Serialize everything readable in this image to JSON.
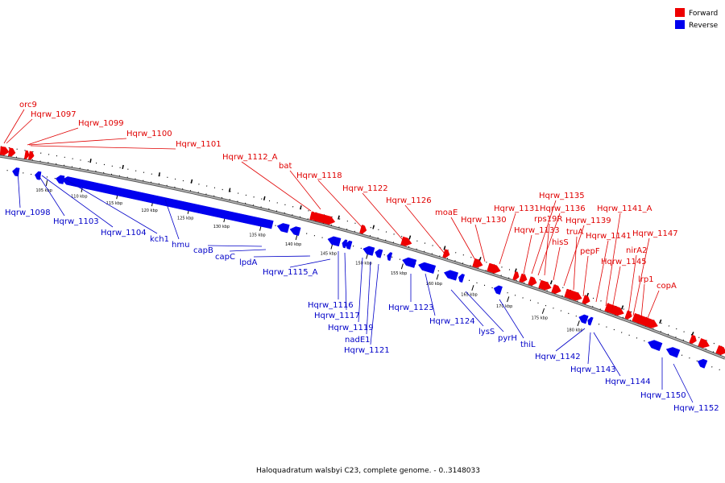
{
  "caption": "Haloquadratum walsbyi C23, complete genome. - 0..3148033",
  "legend": [
    {
      "label": "Forward",
      "color": "#ee0000"
    },
    {
      "label": "Reverse",
      "color": "#0000ee"
    }
  ],
  "colors": {
    "forward": "#ee0000",
    "reverse": "#0000ee",
    "forward_label": "#e00000",
    "reverse_label": "#0000c8",
    "backbone": "#999999"
  },
  "ticks": [
    "105 kbp",
    "110 kbp",
    "115 kbp",
    "120 kbp",
    "125 kbp",
    "130 kbp",
    "135 kbp",
    "140 kbp",
    "145 kbp",
    "150 kbp",
    "155 kbp",
    "160 kbp",
    "165 kbp",
    "170 kbp",
    "175 kbp",
    "180 kbp"
  ],
  "forward_genes": [
    {
      "label": "orc9"
    },
    {
      "label": "Hqrw_1097"
    },
    {
      "label": "Hqrw_1099"
    },
    {
      "label": "Hqrw_1100"
    },
    {
      "label": "Hqrw_1101"
    },
    {
      "label": "Hqrw_1112_A"
    },
    {
      "label": "bat"
    },
    {
      "label": "Hqrw_1118"
    },
    {
      "label": "Hqrw_1122"
    },
    {
      "label": "Hqrw_1126"
    },
    {
      "label": "moaE"
    },
    {
      "label": "Hqrw_1130"
    },
    {
      "label": "Hqrw_1131"
    },
    {
      "label": "Hqrw_1133"
    },
    {
      "label": "Hqrw_1135"
    },
    {
      "label": "Hqrw_1136"
    },
    {
      "label": "rps19R"
    },
    {
      "label": "hisS"
    },
    {
      "label": "Hqrw_1139"
    },
    {
      "label": "truA"
    },
    {
      "label": "pepF"
    },
    {
      "label": "Hqrw_1141"
    },
    {
      "label": "Hqrw_1141_A"
    },
    {
      "label": "Hqrw_1145"
    },
    {
      "label": "nirA2"
    },
    {
      "label": "Hqrw_1147"
    },
    {
      "label": "lrp1"
    },
    {
      "label": "copA"
    }
  ],
  "reverse_genes": [
    {
      "label": "Hqrw_1098"
    },
    {
      "label": "Hqrw_1103"
    },
    {
      "label": "Hqrw_1104"
    },
    {
      "label": "kch1"
    },
    {
      "label": "hmu"
    },
    {
      "label": "capB"
    },
    {
      "label": "capC"
    },
    {
      "label": "lpdA"
    },
    {
      "label": "Hqrw_1115_A"
    },
    {
      "label": "Hqrw_1116"
    },
    {
      "label": "Hqrw_1117"
    },
    {
      "label": "Hqrw_1119"
    },
    {
      "label": "nadE1"
    },
    {
      "label": "Hqrw_1121"
    },
    {
      "label": "Hqrw_1123"
    },
    {
      "label": "Hqrw_1124"
    },
    {
      "label": "lysS"
    },
    {
      "label": "pyrH"
    },
    {
      "label": "thiL"
    },
    {
      "label": "Hqrw_1142"
    },
    {
      "label": "Hqrw_1143"
    },
    {
      "label": "Hqrw_1144"
    },
    {
      "label": "Hqrw_1150"
    },
    {
      "label": "Hqrw_1152"
    }
  ]
}
